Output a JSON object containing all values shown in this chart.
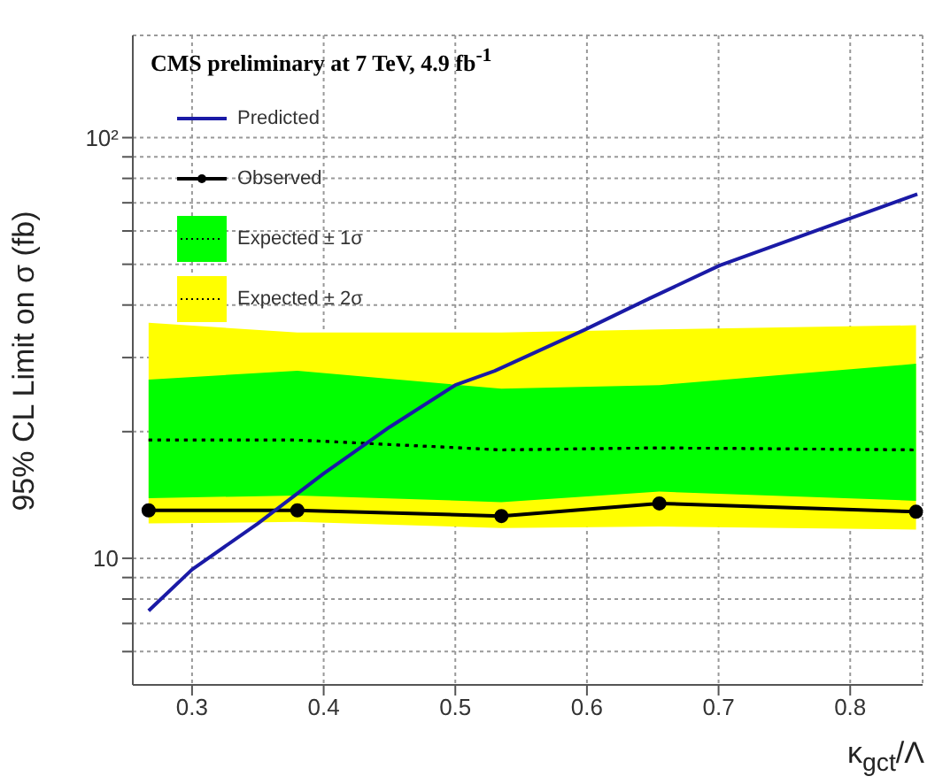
{
  "chart_data": {
    "type": "line",
    "title": "CMS preliminary at 7 TeV, 4.9 fb$^{-1}$",
    "xlabel": "κ$_{gct}$/Λ",
    "ylabel": "95% CL Limit on σ (fb)",
    "log": "y",
    "grid": true,
    "legend": "top left",
    "xlim": [
      0.255,
      0.855
    ],
    "xticks": [
      0.3,
      0.4,
      0.5,
      0.6,
      0.7,
      0.8
    ],
    "ylim": [
      5,
      175
    ],
    "yticks": [
      {
        "value": 6,
        "label": null
      },
      {
        "value": 7,
        "label": null
      },
      {
        "value": 8,
        "label": null
      },
      {
        "value": 9,
        "label": null
      },
      10,
      {
        "value": 20,
        "label": null
      },
      {
        "value": 30,
        "label": null
      },
      {
        "value": 40,
        "label": null
      },
      {
        "value": 50,
        "label": null
      },
      {
        "value": 60,
        "label": null
      },
      {
        "value": 70,
        "label": null
      },
      {
        "value": 80,
        "label": null
      },
      {
        "value": 90,
        "label": null
      },
      {
        "value": 100,
        "label": "10²"
      }
    ],
    "series": [
      {
        "name": "Predicted",
        "color": "#1a1aa6",
        "marker": "none",
        "line_style": "solid",
        "x": [
          0.267,
          0.3,
          0.35,
          0.4,
          0.45,
          0.5,
          0.53,
          0.598,
          0.647,
          0.701,
          0.851
        ],
        "values": [
          7.5,
          9.4,
          12.1,
          15.9,
          20.5,
          25.8,
          27.9,
          34.9,
          41.4,
          49.7,
          73.4
        ]
      },
      {
        "name": "Observed",
        "color": "#000000",
        "marker": "circle",
        "line_style": "solid",
        "x": [
          0.267,
          0.38,
          0.535,
          0.655,
          0.85
        ],
        "values": [
          13.0,
          13.0,
          12.6,
          13.5,
          12.9
        ]
      },
      {
        "name": "Expected ± 1σ",
        "color": "#000000",
        "marker": "none",
        "line_style": "dotted",
        "x": [
          0.267,
          0.38,
          0.535,
          0.655,
          0.85
        ],
        "values": [
          19.1,
          19.1,
          18.1,
          18.3,
          18.1
        ],
        "lower": [
          13.9,
          14.1,
          13.6,
          14.4,
          13.7
        ],
        "upper": [
          26.6,
          27.9,
          25.3,
          25.8,
          29.0
        ]
      },
      {
        "name": "Expected ± 2σ",
        "color": "#000000",
        "marker": "none",
        "line_style": "dotted",
        "x": [
          0.267,
          0.38,
          0.535,
          0.655,
          0.85
        ],
        "values": [
          19.1,
          19.1,
          18.1,
          18.3,
          18.1
        ],
        "lower": [
          12.1,
          12.2,
          11.8,
          11.9,
          11.7
        ],
        "upper": [
          36.3,
          34.4,
          34.4,
          35.0,
          35.8
        ]
      }
    ]
  }
}
